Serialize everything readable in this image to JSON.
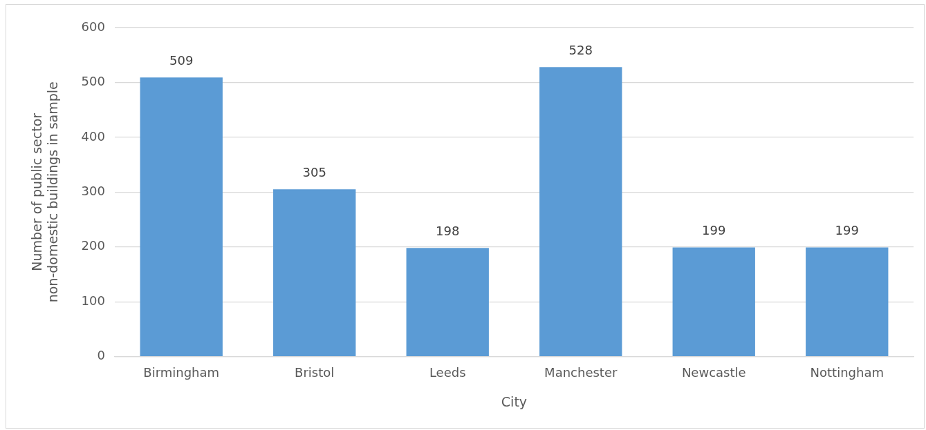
{
  "chart_data": {
    "type": "bar",
    "xlabel": "City",
    "ylabel": "Number of public sector non-domestic buildings in sample",
    "categories": [
      "Birmingham",
      "Bristol",
      "Leeds",
      "Manchester",
      "Newcastle",
      "Nottingham"
    ],
    "values": [
      509,
      305,
      198,
      528,
      199,
      199
    ],
    "color": "#5b9bd5",
    "ylim": [
      0,
      600
    ],
    "yticks": [
      0,
      100,
      200,
      300,
      400,
      500,
      600
    ],
    "grid": "y",
    "data_labels": true,
    "legend": false
  }
}
